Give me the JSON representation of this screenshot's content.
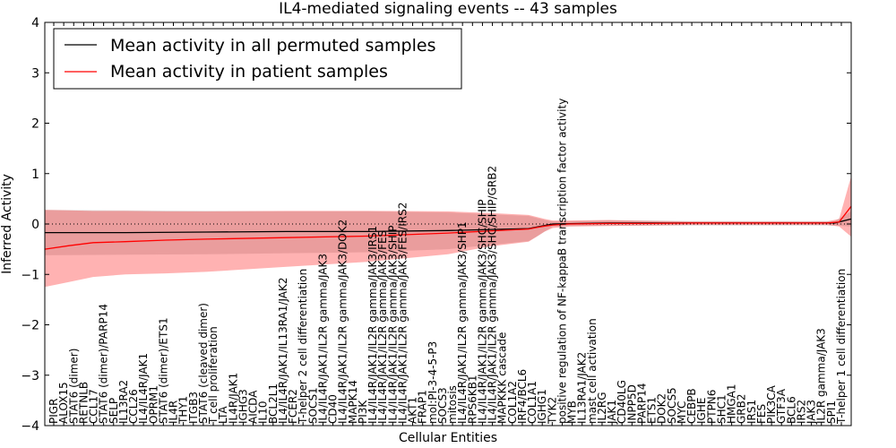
{
  "chart_data": {
    "type": "line",
    "title": "IL4-mediated signaling events -- 43 samples",
    "xlabel": "Cellular Entities",
    "ylabel": "Inferred Activity",
    "ylim": [
      -4,
      4
    ],
    "yticks": [
      -4,
      -3,
      -2,
      -1,
      0,
      1,
      2,
      3,
      4
    ],
    "grid": false,
    "legend_position": "top-left",
    "categories": [
      "PIGR",
      "ALOX15",
      "STAT6 (dimer)",
      "RETNLB",
      "CCL17",
      "STAT6 (dimer)/PARP14",
      "SELP",
      "IL13RA2",
      "CCL26",
      "IL4/IL4R/JAK1",
      "OPRM1",
      "STAT6 (dimer)/ETS1",
      "IL4R",
      "THY1",
      "ITGB3",
      "STAT6 (cleaved dimer)",
      "T cell proliferation",
      "LTA",
      "IL4R/JAK1",
      "IGHG3",
      "AICDA",
      "IL10",
      "BCL2L1",
      "IL4/IL4R/JAK1/IL13RA1/JAK2",
      "FCER2",
      "T-helper 2 cell differentiation",
      "SOCS1",
      "IL4/IL4R/JAK1/IL2R gamma/JAK3",
      "CD40",
      "IL4/IL4R/JAK1/IL2R gamma/JAK3/DOK2",
      "MAPK14",
      "PI3K",
      "IL4/IL4R/JAK1/IL2R gamma/JAK3/IRS1",
      "IL4/IL4R/JAK1/IL2R gamma/JAK3/FES",
      "IL4/IL4R/JAK1/IL2R gamma/JAK3/SHIP",
      "IL4/IL4R/JAK1/IL2R gamma/JAK3/FES/IRS2",
      "AKT1",
      "FRAP1",
      "mol:PI-3-4-5-P3",
      "SOCS3",
      "mitosis",
      "IL4/IL4R/JAK1/IL2R gamma/JAK3/SHP1",
      "RPS6KB1",
      "IL4/IL4R/JAK1/IL2R gamma/JAK3/SHC/SHIP",
      "IL4/IL4R/JAK1/IL2R gamma/JAK3/SHC/SHIP/GRB2",
      "MAPKKK cascade",
      "COL1A2",
      "IRF4/BCL6",
      "COL1A1",
      "IGHG1",
      "TYK2",
      "positive regulation of NF-kappaB transcription factor activity",
      "MYB",
      "IL13RA1/JAK2",
      "mast cell activation",
      "IL2RG",
      "JAK1",
      "CD40LG",
      "INPP5D",
      "PARP14",
      "ETS1",
      "DOK2",
      "SOCS5",
      "MYC",
      "CEBPB",
      "IGHE",
      "PTPN6",
      "SHC1",
      "HMGA1",
      "GRB2",
      "IRS1",
      "FES",
      "PIK3CA",
      "GTF3A",
      "BCL6",
      "IRS2",
      "JAK3",
      "IL2R gamma/JAK3",
      "SPI1",
      "T-helper 1 cell differentiation"
    ],
    "series": [
      {
        "name": "Mean activity in all permuted samples",
        "color": "#000000",
        "x": [
          0,
          0.1,
          0.2,
          0.3,
          0.4,
          0.5,
          0.6,
          0.61,
          0.62,
          0.63,
          0.7,
          0.75,
          0.8,
          0.85,
          0.9,
          0.95,
          0.98,
          1.0
        ],
        "values": [
          -0.17,
          -0.17,
          -0.16,
          -0.15,
          -0.15,
          -0.13,
          -0.09,
          -0.06,
          -0.03,
          0.0,
          0.02,
          0.02,
          0.02,
          0.02,
          0.02,
          0.02,
          0.02,
          0.1
        ],
        "band_upper": [
          0.28,
          0.27,
          0.26,
          0.25,
          0.25,
          0.23,
          0.16,
          0.12,
          0.08,
          0.05,
          0.07,
          0.07,
          0.06,
          0.06,
          0.06,
          0.06,
          0.06,
          0.25
        ],
        "band_lower": [
          -0.62,
          -0.61,
          -0.6,
          -0.58,
          -0.56,
          -0.5,
          -0.34,
          -0.25,
          -0.15,
          -0.05,
          -0.03,
          -0.03,
          -0.03,
          -0.03,
          -0.03,
          -0.03,
          -0.03,
          -0.05
        ]
      },
      {
        "name": "Mean activity in patient samples",
        "color": "#ff0000",
        "x": [
          0,
          0.03,
          0.06,
          0.1,
          0.15,
          0.2,
          0.3,
          0.4,
          0.5,
          0.55,
          0.6,
          0.61,
          0.62,
          0.63,
          0.65,
          0.7,
          0.75,
          0.8,
          0.9,
          0.97,
          0.985,
          1.0
        ],
        "values": [
          -0.5,
          -0.43,
          -0.37,
          -0.35,
          -0.32,
          -0.3,
          -0.27,
          -0.24,
          -0.18,
          -0.14,
          -0.1,
          -0.07,
          -0.04,
          -0.02,
          0.0,
          0.01,
          0.01,
          0.02,
          0.02,
          0.02,
          0.04,
          0.35
        ],
        "band_upper": [
          0.28,
          0.27,
          0.26,
          0.26,
          0.25,
          0.25,
          0.26,
          0.26,
          0.25,
          0.22,
          0.18,
          0.14,
          0.1,
          0.07,
          0.07,
          0.08,
          0.06,
          0.05,
          0.05,
          0.05,
          0.1,
          0.95
        ],
        "band_lower": [
          -1.25,
          -1.15,
          -1.05,
          -1.0,
          -0.98,
          -0.95,
          -0.85,
          -0.75,
          -0.6,
          -0.45,
          -0.35,
          -0.25,
          -0.15,
          -0.08,
          -0.05,
          -0.04,
          -0.03,
          -0.02,
          -0.02,
          -0.02,
          -0.05,
          -0.25
        ]
      }
    ],
    "reference_line": {
      "y": 0,
      "style": "dotted"
    }
  }
}
